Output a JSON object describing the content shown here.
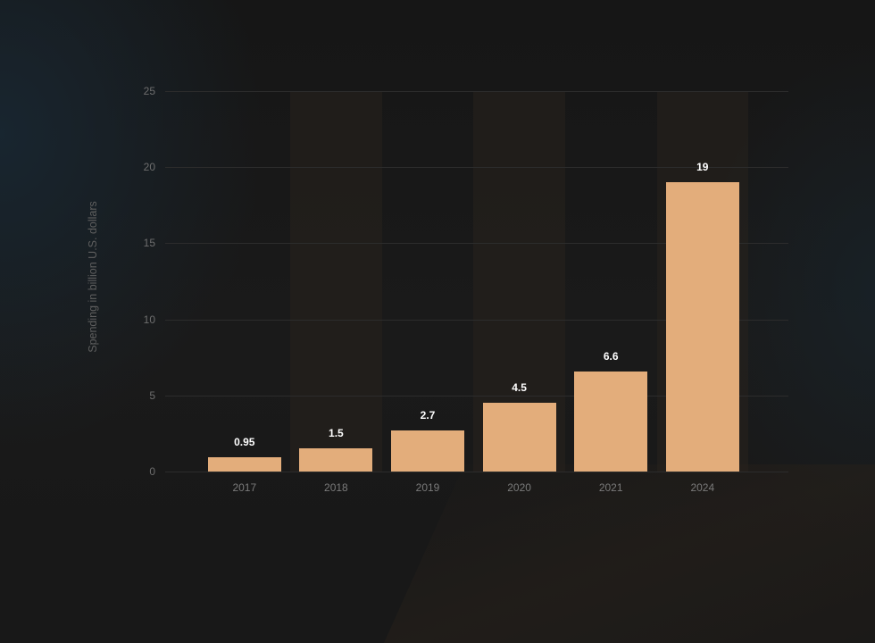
{
  "chart_data": {
    "type": "bar",
    "title": "",
    "xlabel": "",
    "ylabel": "Spending in billion U.S. dollars",
    "categories": [
      "2017",
      "2018",
      "2019",
      "2020",
      "2021",
      "2024"
    ],
    "values": [
      0.95,
      1.5,
      2.7,
      4.5,
      6.6,
      19
    ],
    "value_labels": [
      "0.95",
      "1.5",
      "2.7",
      "4.5",
      "6.6",
      "19"
    ],
    "ylim": [
      0,
      25
    ],
    "yticks": [
      "0",
      "5",
      "10",
      "15",
      "20",
      "25"
    ],
    "grid": true,
    "legend": null,
    "bar_color": "#e3ad7b",
    "background_color": "#181818"
  }
}
